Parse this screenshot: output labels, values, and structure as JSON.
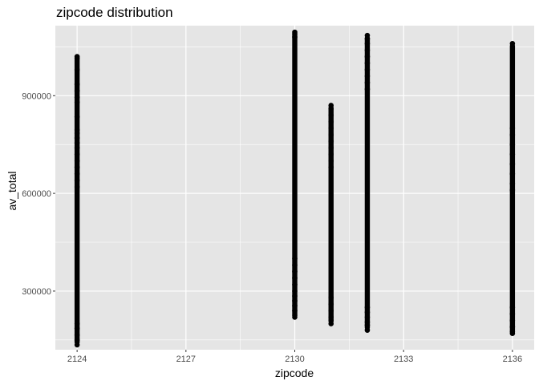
{
  "chart_data": {
    "type": "scatter",
    "title": "zipcode  distribution",
    "xlabel": "zipcode",
    "ylabel": "av_total",
    "xlim": [
      2123.4,
      2136.6
    ],
    "ylim": [
      120000,
      1115000
    ],
    "x_ticks": [
      2124,
      2127,
      2130,
      2133,
      2136
    ],
    "x_tick_labels": [
      "2124",
      "2127",
      "2130",
      "2133",
      "2136"
    ],
    "y_ticks": [
      300000,
      600000,
      900000
    ],
    "y_tick_labels": [
      "300000",
      "600000",
      "900000"
    ],
    "grid": true,
    "legend": "none",
    "series": [
      {
        "x": 2124,
        "y_range": [
          135000,
          1020000
        ],
        "points": [
          1020000,
          1015000,
          980000,
          935000,
          915000,
          895000,
          880000,
          835000,
          795000,
          785000,
          770000,
          755000,
          740000,
          720000,
          700000,
          680000,
          660000,
          640000,
          620000,
          200000,
          185000,
          165000,
          150000,
          135000
        ]
      },
      {
        "x": 2130,
        "y_range": [
          220000,
          1095000
        ],
        "points": [
          1095000,
          1090000,
          1080000,
          400000,
          380000,
          360000,
          340000,
          320000,
          300000,
          285000,
          270000,
          255000,
          240000,
          225000,
          220000
        ]
      },
      {
        "x": 2131,
        "y_range": [
          200000,
          870000
        ],
        "points": [
          870000,
          860000,
          840000,
          820000,
          800000,
          780000,
          760000,
          740000,
          720000,
          700000,
          680000,
          280000,
          260000,
          240000,
          220000,
          210000,
          200000
        ]
      },
      {
        "x": 2132,
        "y_range": [
          180000,
          1085000
        ],
        "points": [
          1085000,
          1075000,
          1060000,
          1040000,
          1020000,
          1000000,
          980000,
          960000,
          940000,
          920000,
          250000,
          235000,
          220000,
          205000,
          195000,
          180000
        ]
      },
      {
        "x": 2136,
        "y_range": [
          170000,
          1060000
        ],
        "points": [
          1060000,
          800000,
          780000,
          750000,
          720000,
          690000,
          660000,
          630000,
          610000,
          250000,
          230000,
          210000,
          190000,
          175000,
          170000
        ]
      }
    ],
    "colors": {
      "panel_background": "#e5e5e5",
      "grid": "#ffffff",
      "points": "#000000",
      "tick_labels": "#4d4d4d"
    }
  }
}
